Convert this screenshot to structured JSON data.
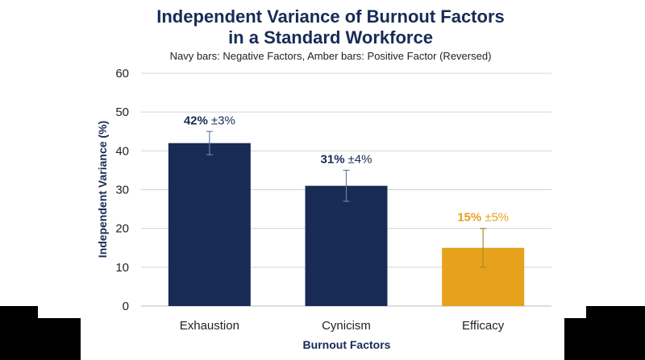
{
  "chart_data": {
    "type": "bar",
    "title_line1": "Independent Variance of Burnout Factors",
    "title_line2": "in a Standard Workforce",
    "subtitle": "Navy bars: Negative Factors, Amber bars: Positive Factor (Reversed)",
    "xlabel": "Burnout Factors",
    "ylabel": "Independent Variance (%)",
    "ylim": [
      0,
      60
    ],
    "yticks": [
      0,
      10,
      20,
      30,
      40,
      50,
      60
    ],
    "grid": true,
    "categories": [
      "Exhaustion",
      "Cynicism",
      "Efficacy"
    ],
    "values": [
      42,
      31,
      15
    ],
    "errors": [
      3,
      4,
      5
    ],
    "value_labels": [
      "42%",
      "31%",
      "15%"
    ],
    "error_labels": [
      "±3%",
      "±4%",
      "±5%"
    ],
    "colors": [
      "#172b55",
      "#172b55",
      "#e6a21c"
    ],
    "label_colors": [
      "#172b55",
      "#172b55",
      "#e6a21c"
    ]
  }
}
